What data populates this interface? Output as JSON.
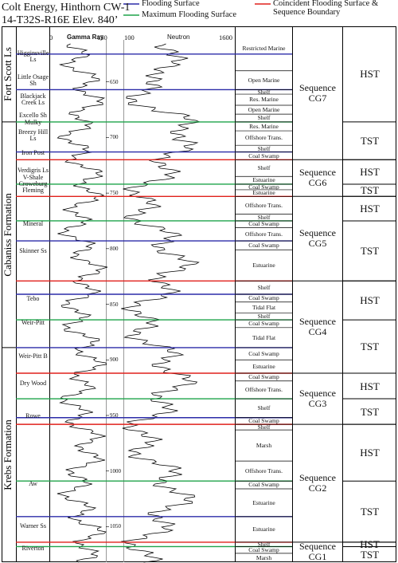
{
  "header": {
    "well": "Colt Energy, Hinthorn CW-1",
    "location": "14-T32S-R16E   Elev.  840’"
  },
  "legend": [
    {
      "label": "Flooding Surface",
      "color": "#2b2ba8"
    },
    {
      "label": "Maximum Flooding Surface",
      "color": "#1fa34a"
    },
    {
      "label": "Coincident Flooding Surface & Sequence Boundary",
      "color": "#e0201b"
    }
  ],
  "log": {
    "depth_range": [
      600,
      1082
    ],
    "depth_ticks": [
      650,
      700,
      750,
      800,
      850,
      900,
      950,
      1000,
      1050
    ],
    "gamma": {
      "label": "Gamma Ray",
      "scale": [
        0,
        150
      ]
    },
    "neutron": {
      "label": "Neutron",
      "scale": [
        100,
        1600
      ]
    }
  },
  "formations": [
    {
      "label": "Fort Scott Ls",
      "top": 600,
      "base": 686
    },
    {
      "label": "Cabaniss Formation",
      "top": 686,
      "base": 889
    },
    {
      "label": "Krebs Formation",
      "top": 889,
      "base": 1082
    }
  ],
  "members": [
    {
      "label": "Higginsville Ls",
      "depth": 627
    },
    {
      "label": "Little Osage Sh",
      "depth": 649
    },
    {
      "label": "Blackjack Creek Ls",
      "depth": 666
    },
    {
      "label": "Excello Sh",
      "depth": 680
    },
    {
      "label": "Mulky",
      "depth": 687
    },
    {
      "label": "Breezy Hill Ls",
      "depth": 698
    },
    {
      "label": "Iron Post",
      "depth": 714
    },
    {
      "label": "Verdigris Ls",
      "depth": 730
    },
    {
      "label": "V-Shale",
      "depth": 736
    },
    {
      "label": "Croweburg",
      "depth": 742
    },
    {
      "label": "Fleming",
      "depth": 748
    },
    {
      "label": "Mineral",
      "depth": 778
    },
    {
      "label": "Skinner Ss",
      "depth": 802
    },
    {
      "label": "Tebo",
      "depth": 845
    },
    {
      "label": "Weir-Pitt",
      "depth": 867
    },
    {
      "label": "Weir-Pitt B",
      "depth": 897
    },
    {
      "label": "Dry Wood",
      "depth": 921
    },
    {
      "label": "Rowe",
      "depth": 951
    },
    {
      "label": "Aw",
      "depth": 1012
    },
    {
      "label": "Warner Ss",
      "depth": 1050
    },
    {
      "label": "Riverton",
      "depth": 1070
    }
  ],
  "surfaces": [
    {
      "depth": 625,
      "color": "#2b2ba8"
    },
    {
      "depth": 657,
      "color": "#2b2ba8"
    },
    {
      "depth": 686,
      "color": "#1fa34a"
    },
    {
      "depth": 713,
      "color": "#2b2ba8"
    },
    {
      "depth": 720,
      "color": "#e0201b"
    },
    {
      "depth": 742,
      "color": "#1fa34a"
    },
    {
      "depth": 753,
      "color": "#e0201b"
    },
    {
      "depth": 775,
      "color": "#1fa34a"
    },
    {
      "depth": 793,
      "color": "#2b2ba8"
    },
    {
      "depth": 829,
      "color": "#e0201b"
    },
    {
      "depth": 841,
      "color": "#2b2ba8"
    },
    {
      "depth": 864,
      "color": "#1fa34a"
    },
    {
      "depth": 889,
      "color": "#2b2ba8"
    },
    {
      "depth": 912,
      "color": "#e0201b"
    },
    {
      "depth": 935,
      "color": "#1fa34a"
    },
    {
      "depth": 952,
      "color": "#2b2ba8"
    },
    {
      "depth": 958,
      "color": "#e0201b"
    },
    {
      "depth": 1009,
      "color": "#1fa34a"
    },
    {
      "depth": 1041,
      "color": "#2b2ba8"
    },
    {
      "depth": 1064,
      "color": "#e0201b"
    },
    {
      "depth": 1068,
      "color": "#1fa34a"
    }
  ],
  "facies": [
    {
      "label": "Restricted Marine",
      "top": 600
    },
    {
      "label": "Open Marine",
      "top": 640
    },
    {
      "label": "Shelf",
      "top": 657
    },
    {
      "label": "Res. Marine",
      "top": 661
    },
    {
      "label": "Open Marine",
      "top": 671
    },
    {
      "label": "Shelf",
      "top": 679
    },
    {
      "label": "Res. Marine",
      "top": 686
    },
    {
      "label": "Offshore Trans.",
      "top": 694
    },
    {
      "label": "Shelf",
      "top": 707
    },
    {
      "label": "Coal Swamp",
      "top": 713
    },
    {
      "label": "Shelf",
      "top": 720
    },
    {
      "label": "Estuarine",
      "top": 735
    },
    {
      "label": "Coal Swamp",
      "top": 742
    },
    {
      "label": "Estuarine",
      "top": 747
    },
    {
      "label": "Offshore Trans.",
      "top": 753
    },
    {
      "label": "Shelf",
      "top": 769
    },
    {
      "label": "Coal Swamp",
      "top": 775
    },
    {
      "label": "Offshore Trans.",
      "top": 781
    },
    {
      "label": "Coal Swamp",
      "top": 793
    },
    {
      "label": "Estuarine",
      "top": 801
    },
    {
      "label": "Shelf",
      "top": 829
    },
    {
      "label": "Coal Swamp",
      "top": 841
    },
    {
      "label": "Tidal Flat",
      "top": 848
    },
    {
      "label": "Shelf",
      "top": 858
    },
    {
      "label": "Coal Swamp",
      "top": 864
    },
    {
      "label": "Tidal Flat",
      "top": 871
    },
    {
      "label": "Coal Swamp",
      "top": 889
    },
    {
      "label": "Estuarine",
      "top": 900
    },
    {
      "label": "Coal Swamp",
      "top": 912
    },
    {
      "label": "Offshore Trans.",
      "top": 919
    },
    {
      "label": "Shelf",
      "top": 935
    },
    {
      "label": "Coal Swamp",
      "top": 952
    },
    {
      "label": "Shelf",
      "top": 958
    },
    {
      "label": "Marsh",
      "top": 963
    },
    {
      "label": "Offshore Trans.",
      "top": 991
    },
    {
      "label": "Coal Swamp",
      "top": 1009
    },
    {
      "label": "Estuarine",
      "top": 1016
    },
    {
      "label": "Estuarine",
      "top": 1041
    },
    {
      "label": "Shelf",
      "top": 1064
    },
    {
      "label": "Coal Swamp",
      "top": 1068
    },
    {
      "label": "Marsh",
      "top": 1074
    }
  ],
  "sequences": [
    {
      "label": "Sequence CG7",
      "top": 600,
      "base": 720
    },
    {
      "label": "Sequence CG6",
      "top": 720,
      "base": 753
    },
    {
      "label": "Sequence CG5",
      "top": 753,
      "base": 829
    },
    {
      "label": "Sequence CG4",
      "top": 829,
      "base": 912
    },
    {
      "label": "Sequence CG3",
      "top": 912,
      "base": 958
    },
    {
      "label": "Sequence CG2",
      "top": 958,
      "base": 1064
    },
    {
      "label": "Sequence CG1",
      "top": 1064,
      "base": 1082
    }
  ],
  "systems_tracts": [
    {
      "label": "HST",
      "top": 600,
      "base": 686
    },
    {
      "label": "TST",
      "top": 686,
      "base": 720
    },
    {
      "label": "HST",
      "top": 720,
      "base": 742
    },
    {
      "label": "TST",
      "top": 742,
      "base": 753
    },
    {
      "label": "HST",
      "top": 753,
      "base": 775
    },
    {
      "label": "TST",
      "top": 775,
      "base": 829
    },
    {
      "label": "HST",
      "top": 829,
      "base": 864
    },
    {
      "label": "TST",
      "top": 864,
      "base": 912
    },
    {
      "label": "HST",
      "top": 912,
      "base": 935
    },
    {
      "label": "TST",
      "top": 935,
      "base": 958
    },
    {
      "label": "HST",
      "top": 958,
      "base": 1009
    },
    {
      "label": "TST",
      "top": 1009,
      "base": 1064
    },
    {
      "label": "HST",
      "top": 1064,
      "base": 1068
    },
    {
      "label": "TST",
      "top": 1068,
      "base": 1082
    }
  ]
}
